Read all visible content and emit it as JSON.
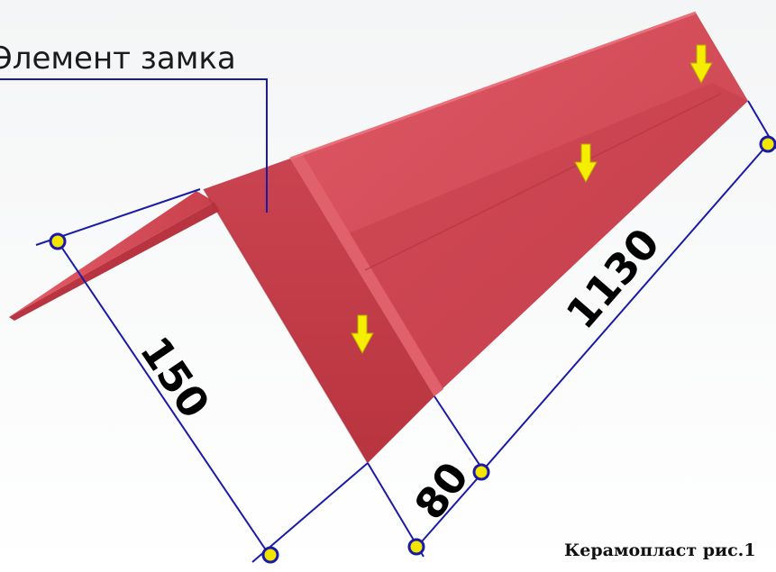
{
  "callout": {
    "label": "Элемент замка"
  },
  "dimensions": {
    "height_150": "150",
    "width_80": "80",
    "length_1130": "1130"
  },
  "caption": {
    "text": "Керамопласт рис.1"
  },
  "colors": {
    "panel_top": "#d84e5a",
    "panel_side": "#c8404c",
    "panel_front": "#c23a46",
    "panel_left": "#cf4652",
    "dimension_line": "#1a1aa8",
    "marker_fill": "#f2e600",
    "arrow_fill": "#f5ee00"
  },
  "icons": {
    "load_arrow": "arrow-down-icon",
    "dimension_marker": "circle-marker-icon"
  }
}
